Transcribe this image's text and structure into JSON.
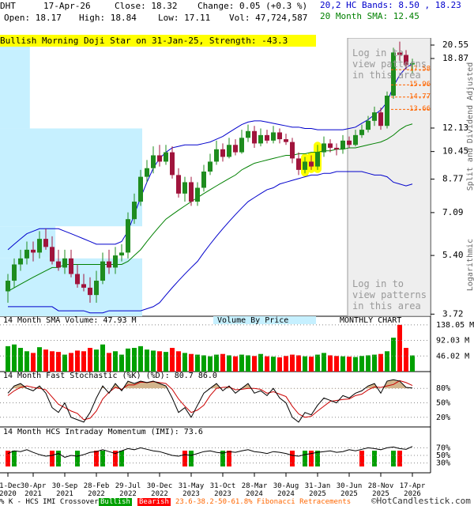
{
  "header": {
    "symbol": "DHT",
    "date": "17-Apr-26",
    "close": "Close: 18.32",
    "change": "Change: 0.05 (+0.3 %)",
    "bands": "20,2 HC Bands: 8.50 , 18.23",
    "open": "Open: 18.17",
    "high": "High: 18.84",
    "low": "Low: 17.11",
    "volume": "Vol: 47,724,587",
    "sma": "20 Month SMA: 12.45"
  },
  "chart_data": [
    {
      "type": "candlestick",
      "annotation": "Bullish Morning Doji Star on 31-Jan-25, Strength: -43.3",
      "watermark": "Log in to view patterns in this area",
      "categories": [
        "31-Dec 2020",
        null,
        null,
        null,
        "30-Apr 2021",
        null,
        null,
        null,
        null,
        "30-Sep 2021",
        null,
        null,
        null,
        null,
        "28-Feb 2022",
        null,
        null,
        null,
        null,
        "29-Jul 2022",
        null,
        null,
        null,
        null,
        "30-Dec 2022",
        null,
        null,
        null,
        null,
        "31-May 2023",
        null,
        null,
        null,
        null,
        "31-Oct 2023",
        null,
        null,
        null,
        null,
        "28-Mar 2024",
        null,
        null,
        null,
        null,
        "30-Aug 2024",
        null,
        null,
        null,
        null,
        "31-Jan 2025",
        null,
        null,
        null,
        null,
        "30-Jun 2025",
        null,
        null,
        null,
        null,
        "28-Nov 2025",
        null,
        null,
        null,
        null,
        "17-Apr 2026"
      ],
      "open": [
        4.3,
        4.6,
        5.1,
        5.3,
        5.6,
        5.5,
        6.0,
        5.7,
        5.2,
        5.0,
        5.3,
        4.8,
        4.5,
        4.4,
        4.2,
        4.6,
        5.2,
        5.0,
        5.4,
        5.5,
        6.8,
        7.6,
        8.9,
        9.4,
        10.2,
        9.8,
        10.4,
        9.0,
        8.0,
        8.6,
        7.6,
        8.3,
        9.2,
        9.8,
        10.6,
        10.1,
        10.9,
        10.4,
        11.4,
        11.9,
        11.0,
        11.6,
        11.2,
        11.8,
        11.3,
        11.1,
        10.0,
        9.3,
        9.8,
        9.5,
        10.4,
        11.0,
        10.7,
        10.6,
        11.2,
        10.9,
        11.6,
        12.0,
        12.7,
        13.4,
        12.3,
        14.9,
        19.6,
        19.3,
        18.17
      ],
      "high": [
        4.8,
        5.3,
        5.6,
        5.9,
        5.9,
        6.3,
        6.4,
        6.1,
        5.6,
        5.6,
        5.6,
        5.1,
        4.8,
        4.7,
        4.9,
        5.5,
        5.6,
        5.7,
        5.8,
        7.1,
        8.0,
        9.3,
        9.9,
        10.8,
        10.9,
        10.9,
        10.8,
        9.4,
        8.9,
        8.9,
        8.6,
        9.6,
        10.3,
        11.2,
        11.0,
        11.4,
        11.3,
        12.0,
        12.4,
        12.3,
        12.1,
        12.0,
        12.3,
        12.1,
        11.7,
        11.4,
        10.4,
        10.1,
        10.2,
        10.9,
        11.5,
        11.3,
        11.0,
        11.6,
        11.5,
        12.0,
        12.4,
        13.1,
        13.9,
        13.8,
        15.3,
        20.2,
        21.0,
        19.9,
        18.84
      ],
      "low": [
        4.0,
        4.4,
        4.9,
        5.1,
        5.2,
        5.3,
        5.6,
        5.1,
        4.9,
        4.8,
        4.7,
        4.4,
        4.3,
        4.0,
        4.0,
        4.5,
        4.8,
        4.8,
        5.2,
        5.3,
        6.6,
        7.4,
        8.6,
        9.1,
        9.5,
        9.6,
        8.8,
        7.8,
        7.6,
        7.4,
        7.4,
        8.1,
        9.0,
        9.6,
        9.8,
        10.0,
        10.2,
        10.3,
        11.1,
        10.7,
        10.8,
        11.0,
        11.0,
        11.0,
        10.9,
        9.7,
        9.0,
        9.1,
        9.3,
        9.3,
        10.1,
        10.4,
        10.2,
        10.3,
        10.7,
        10.8,
        11.4,
        11.8,
        12.3,
        12.0,
        12.1,
        14.6,
        18.6,
        17.6,
        17.11
      ],
      "close": [
        4.6,
        5.1,
        5.3,
        5.6,
        5.5,
        6.0,
        5.7,
        5.2,
        5.0,
        5.3,
        4.8,
        4.5,
        4.4,
        4.2,
        4.6,
        5.2,
        5.0,
        5.4,
        5.5,
        6.8,
        7.6,
        8.9,
        9.4,
        10.2,
        9.8,
        10.4,
        9.0,
        8.0,
        8.6,
        7.6,
        8.3,
        9.2,
        9.8,
        10.6,
        10.1,
        10.9,
        10.4,
        11.4,
        11.9,
        11.0,
        11.6,
        11.2,
        11.8,
        11.3,
        11.1,
        10.0,
        9.3,
        9.8,
        9.5,
        10.4,
        11.0,
        10.7,
        10.6,
        11.2,
        10.9,
        11.6,
        12.0,
        12.7,
        13.4,
        12.3,
        14.9,
        19.6,
        19.3,
        18.1,
        18.32
      ],
      "candle_colors": [
        "#1e8c1e",
        "#a0143c"
      ],
      "upper_band": {
        "color": "#0000cc",
        "values": [
          5.6,
          5.8,
          6.0,
          6.2,
          6.3,
          6.4,
          6.4,
          6.4,
          6.4,
          6.3,
          6.2,
          6.1,
          6.0,
          5.9,
          5.8,
          5.8,
          5.8,
          5.8,
          5.9,
          6.3,
          7.0,
          7.8,
          8.6,
          9.4,
          10.0,
          10.4,
          10.7,
          10.8,
          10.9,
          10.9,
          10.9,
          11.0,
          11.1,
          11.3,
          11.5,
          11.8,
          12.1,
          12.4,
          12.6,
          12.7,
          12.7,
          12.6,
          12.5,
          12.4,
          12.3,
          12.2,
          12.2,
          12.1,
          12.1,
          12.0,
          12.0,
          12.0,
          12.0,
          12.0,
          12.1,
          12.2,
          12.5,
          12.8,
          13.2,
          13.6,
          14.3,
          15.8,
          17.0,
          17.8,
          18.23
        ]
      },
      "lower_band": {
        "color": "#0000cc",
        "values": [
          3.9,
          3.9,
          3.9,
          3.9,
          3.9,
          3.9,
          3.9,
          3.9,
          3.8,
          3.8,
          3.8,
          3.8,
          3.8,
          3.75,
          3.75,
          3.75,
          3.8,
          3.8,
          3.8,
          3.8,
          3.8,
          3.8,
          3.85,
          3.9,
          4.0,
          4.2,
          4.4,
          4.6,
          4.8,
          5.0,
          5.2,
          5.5,
          5.8,
          6.1,
          6.4,
          6.7,
          7.0,
          7.3,
          7.6,
          7.8,
          8.0,
          8.2,
          8.3,
          8.5,
          8.6,
          8.7,
          8.8,
          8.9,
          9.0,
          9.0,
          9.1,
          9.1,
          9.2,
          9.2,
          9.2,
          9.2,
          9.2,
          9.1,
          9.0,
          9.0,
          8.9,
          8.6,
          8.5,
          8.4,
          8.5
        ]
      },
      "sma": {
        "color": "#008000",
        "values": [
          4.3,
          4.4,
          4.5,
          4.6,
          4.7,
          4.8,
          4.9,
          5.0,
          5.0,
          5.1,
          5.1,
          5.1,
          5.1,
          5.1,
          5.1,
          5.1,
          5.1,
          5.1,
          5.1,
          5.2,
          5.4,
          5.6,
          5.9,
          6.2,
          6.5,
          6.8,
          7.0,
          7.2,
          7.4,
          7.6,
          7.8,
          8.0,
          8.2,
          8.4,
          8.6,
          8.8,
          9.0,
          9.3,
          9.5,
          9.7,
          9.8,
          9.9,
          10.0,
          10.1,
          10.2,
          10.2,
          10.3,
          10.3,
          10.4,
          10.4,
          10.5,
          10.5,
          10.6,
          10.6,
          10.7,
          10.7,
          10.8,
          10.9,
          11.0,
          11.1,
          11.3,
          11.6,
          12.0,
          12.3,
          12.45
        ]
      },
      "log_scale": true,
      "ylim": [
        3.67,
        21.5
      ],
      "yticks": [
        20.55,
        18.87,
        12.13,
        10.45,
        8.77,
        7.09,
        {
          "value": 5.4,
          "label": "5.40"
        },
        3.72
      ],
      "fibonacci": {
        "color": "#ff6600",
        "levels": [
          17.58,
          15.96,
          14.77,
          13.66
        ]
      },
      "volume_by_price": {
        "color": "#c6f0ff",
        "bins": [
          3.67,
          5.3,
          6.5,
          12.1,
          20.55
        ],
        "values": [
          100,
          39,
          100,
          21
        ]
      },
      "axis_labels": [
        "Split and Dividend Adjusted",
        "Logarithmic"
      ]
    },
    {
      "type": "bar",
      "title": "14 Month SMA Volume: 47.93 M",
      "subtitle": "Volume By Price",
      "label": "MONTHLY CHART",
      "values": [
        75,
        80,
        70,
        60,
        55,
        72,
        65,
        60,
        58,
        50,
        55,
        62,
        60,
        70,
        65,
        80,
        55,
        60,
        50,
        68,
        70,
        75,
        65,
        62,
        60,
        58,
        70,
        60,
        55,
        52,
        50,
        48,
        45,
        50,
        52,
        48,
        45,
        50,
        48,
        46,
        52,
        45,
        44,
        42,
        46,
        50,
        48,
        45,
        44,
        50,
        55,
        48,
        46,
        45,
        44,
        43,
        46,
        48,
        50,
        52,
        60,
        100,
        138,
        70,
        47.72
      ],
      "colors": [
        "#00a000",
        "#ff0000"
      ],
      "ylim": [
        0,
        140
      ],
      "yticks": [
        {
          "value": 138.05,
          "label": "138.05 M"
        },
        {
          "value": 92.03,
          "label": "92.03 M"
        },
        {
          "value": 46.02,
          "label": "46.02 M"
        }
      ]
    },
    {
      "type": "line",
      "title": "14 Month Fast Stochastic (%K) (%D): 80.7  86.0",
      "series": [
        {
          "color": "#000000",
          "values": [
            70,
            85,
            90,
            80,
            75,
            85,
            70,
            40,
            30,
            50,
            20,
            15,
            10,
            30,
            60,
            85,
            70,
            90,
            75,
            95,
            90,
            95,
            92,
            95,
            90,
            85,
            60,
            30,
            40,
            20,
            45,
            70,
            80,
            90,
            75,
            85,
            70,
            80,
            90,
            70,
            75,
            65,
            80,
            60,
            50,
            20,
            10,
            30,
            25,
            45,
            60,
            55,
            50,
            65,
            60,
            70,
            75,
            85,
            90,
            70,
            95,
            98,
            95,
            82,
            80.7
          ]
        },
        {
          "color": "#cc0000",
          "values": [
            65,
            75,
            82,
            85,
            82,
            80,
            77,
            62,
            47,
            40,
            33,
            28,
            15,
            18,
            33,
            58,
            72,
            82,
            78,
            87,
            87,
            93,
            92,
            94,
            92,
            90,
            78,
            58,
            43,
            30,
            35,
            45,
            65,
            80,
            82,
            83,
            77,
            78,
            80,
            80,
            78,
            70,
            73,
            68,
            63,
            43,
            27,
            20,
            22,
            33,
            43,
            53,
            55,
            57,
            58,
            65,
            68,
            77,
            83,
            82,
            85,
            88,
            96,
            92,
            86.0
          ]
        }
      ],
      "fill_color": "#d2b48c",
      "ylim": [
        0,
        100
      ],
      "yticks": [
        {
          "value": 80,
          "label": "80%"
        },
        {
          "value": 50,
          "label": "50%"
        },
        {
          "value": 20,
          "label": "20%"
        }
      ]
    },
    {
      "type": "line",
      "title": "14 Month HCS Intraday Momentum (IMI): 73.6",
      "color": "#000000",
      "values": [
        55,
        62,
        60,
        65,
        58,
        52,
        48,
        50,
        55,
        45,
        50,
        48,
        52,
        58,
        60,
        65,
        60,
        55,
        62,
        68,
        65,
        70,
        66,
        62,
        60,
        55,
        50,
        48,
        52,
        50,
        55,
        60,
        62,
        58,
        56,
        60,
        58,
        62,
        65,
        60,
        58,
        55,
        60,
        58,
        55,
        50,
        48,
        52,
        55,
        58,
        60,
        62,
        58,
        60,
        65,
        62,
        66,
        70,
        68,
        65,
        70,
        72,
        68,
        66,
        73.6
      ],
      "signals": [
        -1,
        1,
        null,
        null,
        null,
        null,
        null,
        -1,
        1,
        null,
        null,
        1,
        null,
        null,
        -1,
        1,
        null,
        -1,
        1,
        null,
        null,
        null,
        null,
        null,
        null,
        null,
        null,
        null,
        -1,
        1,
        null,
        null,
        null,
        null,
        1,
        -1,
        null,
        null,
        null,
        null,
        null,
        null,
        null,
        null,
        null,
        -1,
        null,
        1,
        -1,
        1,
        null,
        null,
        null,
        null,
        null,
        null,
        -1,
        null,
        1,
        null,
        null,
        1,
        -1,
        null,
        null
      ],
      "signal_colors": {
        "bullish": "#00a000",
        "bearish": "#ff0000"
      },
      "ylim": [
        0,
        100
      ],
      "yticks": [
        {
          "value": 70,
          "label": "70%"
        },
        {
          "value": 50,
          "label": "50%"
        },
        {
          "value": 30,
          "label": "30%"
        }
      ]
    }
  ],
  "footer": {
    "legend": "% K - HCS IMI Crossover,",
    "bullish": "Bullish",
    "bearish": "Bearish",
    "fibonacci": "23.6-38.2-50-61.8% Fibonacci Retracements",
    "copyright": "©HotCandlestick.com"
  }
}
